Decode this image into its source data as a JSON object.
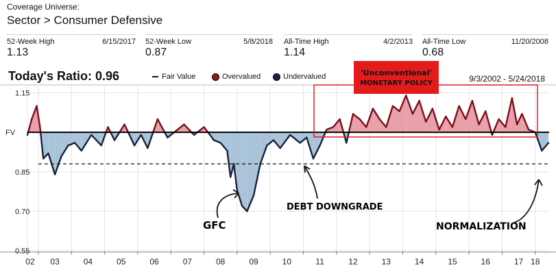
{
  "header": {
    "coverage_label": "Coverage Universe:",
    "breadcrumb": "Sector > Consumer Defensive"
  },
  "stats": [
    {
      "label": "52-Week High",
      "date": "6/15/2017",
      "value": "1.13"
    },
    {
      "label": "52-Week Low",
      "date": "5/8/2018",
      "value": "0.87"
    },
    {
      "label": "All-Time High",
      "date": "4/2/2013",
      "value": "1.14"
    },
    {
      "label": "All-Time Low",
      "date": "11/20/2008",
      "value": "0.68"
    }
  ],
  "ratio": {
    "label": "Today's Ratio:",
    "value": "0.96"
  },
  "legend": {
    "fair_value": "Fair Value",
    "overvalued": "Overvalued",
    "undervalued": "Undervalued"
  },
  "date_range": "9/3/2002 - 5/24/2018",
  "colors": {
    "overvalued_fill": "#e8a0ab",
    "undervalued_fill": "#a9c3d8",
    "over_line": "#7a0f18",
    "under_line": "#16213a",
    "box": "#e31b1b"
  },
  "annotations": {
    "box_label_line1": "'Unconventional'",
    "box_label_line2": "monetary policy",
    "gfc": "GFC",
    "debt": "Debt downgrade",
    "normalization": "Normalization"
  },
  "chart_data": {
    "type": "area",
    "ylim": [
      0.55,
      1.18
    ],
    "y_ticks": [
      0.55,
      0.7,
      0.85,
      1.15
    ],
    "y_tick_labels": [
      "0.55",
      "0.70",
      "0.85",
      "1.15"
    ],
    "fv_label": "FV",
    "fair_value": 1.0,
    "reference_level": 0.88,
    "x_ticks": [
      2002.67,
      2003.0,
      2004.0,
      2005.0,
      2006.0,
      2007.0,
      2008.0,
      2009.0,
      2010.0,
      2011.0,
      2012.0,
      2013.0,
      2014.0,
      2015.0,
      2016.0,
      2017.0,
      2018.0
    ],
    "x_tick_labels": [
      "02",
      "03",
      "04",
      "05",
      "06",
      "07",
      "08",
      "09",
      "10",
      "11",
      "12",
      "13",
      "14",
      "15",
      "16",
      "17",
      "18"
    ],
    "x": [
      2002.67,
      2002.8,
      2002.95,
      2003.05,
      2003.15,
      2003.3,
      2003.5,
      2003.7,
      2003.9,
      2004.1,
      2004.3,
      2004.6,
      2004.9,
      2005.1,
      2005.3,
      2005.6,
      2005.9,
      2006.1,
      2006.3,
      2006.6,
      2006.9,
      2007.1,
      2007.4,
      2007.7,
      2008.0,
      2008.3,
      2008.5,
      2008.7,
      2008.8,
      2008.9,
      2009.0,
      2009.15,
      2009.3,
      2009.5,
      2009.7,
      2009.9,
      2010.1,
      2010.3,
      2010.6,
      2010.9,
      2011.1,
      2011.3,
      2011.5,
      2011.7,
      2011.9,
      2012.1,
      2012.3,
      2012.5,
      2012.7,
      2012.9,
      2013.1,
      2013.3,
      2013.5,
      2013.7,
      2013.9,
      2014.1,
      2014.3,
      2014.5,
      2014.7,
      2014.9,
      2015.1,
      2015.3,
      2015.5,
      2015.7,
      2015.9,
      2016.1,
      2016.3,
      2016.5,
      2016.7,
      2016.9,
      2017.1,
      2017.3,
      2017.45,
      2017.6,
      2017.8,
      2018.0,
      2018.2,
      2018.4
    ],
    "values": [
      0.99,
      1.05,
      1.1,
      1.02,
      0.9,
      0.92,
      0.84,
      0.91,
      0.95,
      0.96,
      0.93,
      0.99,
      0.95,
      1.02,
      0.97,
      1.03,
      0.95,
      0.99,
      0.94,
      1.05,
      0.98,
      1.0,
      1.03,
      0.99,
      1.02,
      0.97,
      0.96,
      0.93,
      0.83,
      0.88,
      0.78,
      0.72,
      0.7,
      0.76,
      0.88,
      0.95,
      0.97,
      0.94,
      0.99,
      0.96,
      0.98,
      0.9,
      0.95,
      1.01,
      1.02,
      1.05,
      0.96,
      1.07,
      1.05,
      1.02,
      1.09,
      1.05,
      1.02,
      1.1,
      1.08,
      1.14,
      1.07,
      1.12,
      1.04,
      1.09,
      1.01,
      1.06,
      1.02,
      1.1,
      1.05,
      1.12,
      1.03,
      1.08,
      0.99,
      1.05,
      1.02,
      1.13,
      1.03,
      1.07,
      1.01,
      1.0,
      0.93,
      0.96
    ]
  }
}
